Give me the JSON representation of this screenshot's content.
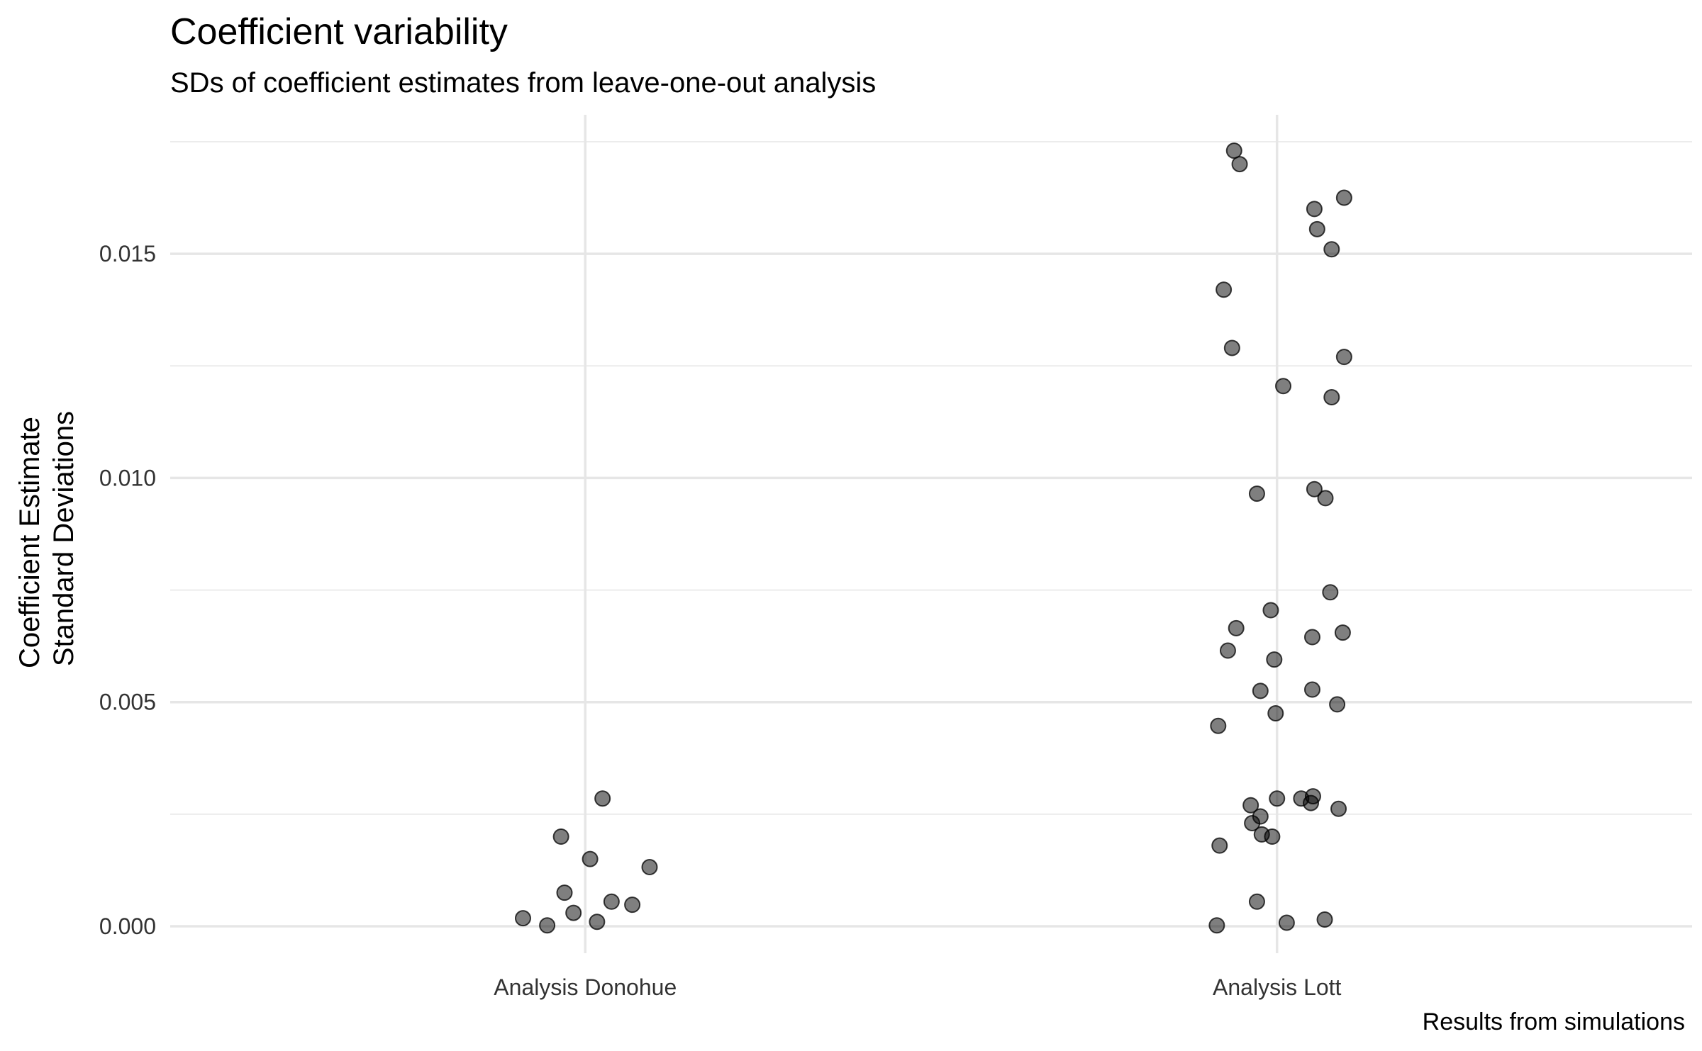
{
  "chart_data": {
    "type": "scatter",
    "title": "Coefficient variability",
    "subtitle": "SDs of coefficient estimates from leave-one-out analysis",
    "caption": "Results from simulations",
    "xlabel": "",
    "ylabel_lines": [
      "Coefficient Estimate",
      "Standard Deviations"
    ],
    "categories": [
      "Analysis Donohue",
      "Analysis Lott"
    ],
    "y_ticks": [
      "0.000",
      "0.005",
      "0.010",
      "0.015"
    ],
    "ylim": [
      -0.0006,
      0.0181
    ],
    "grid": true,
    "legend": "none",
    "point_color": "#000000",
    "point_alpha": 0.5,
    "points": [
      {
        "category": "Analysis Donohue",
        "x": -0.09,
        "y": 0.00018
      },
      {
        "category": "Analysis Donohue",
        "x": -0.055,
        "y": 2e-05
      },
      {
        "category": "Analysis Donohue",
        "x": -0.035,
        "y": 0.002
      },
      {
        "category": "Analysis Donohue",
        "x": -0.03,
        "y": 0.00075
      },
      {
        "category": "Analysis Donohue",
        "x": -0.017,
        "y": 0.0003
      },
      {
        "category": "Analysis Donohue",
        "x": 0.007,
        "y": 0.0015
      },
      {
        "category": "Analysis Donohue",
        "x": 0.017,
        "y": 0.0001
      },
      {
        "category": "Analysis Donohue",
        "x": 0.025,
        "y": 0.00285
      },
      {
        "category": "Analysis Donohue",
        "x": 0.038,
        "y": 0.00055
      },
      {
        "category": "Analysis Donohue",
        "x": 0.068,
        "y": 0.00048
      },
      {
        "category": "Analysis Donohue",
        "x": 0.093,
        "y": 0.00132
      },
      {
        "category": "Analysis Lott",
        "x": -0.062,
        "y": 0.0173
      },
      {
        "category": "Analysis Lott",
        "x": -0.054,
        "y": 0.017
      },
      {
        "category": "Analysis Lott",
        "x": 0.097,
        "y": 0.01625
      },
      {
        "category": "Analysis Lott",
        "x": 0.054,
        "y": 0.016
      },
      {
        "category": "Analysis Lott",
        "x": 0.058,
        "y": 0.01555
      },
      {
        "category": "Analysis Lott",
        "x": 0.079,
        "y": 0.0151
      },
      {
        "category": "Analysis Lott",
        "x": -0.077,
        "y": 0.0142
      },
      {
        "category": "Analysis Lott",
        "x": -0.065,
        "y": 0.0129
      },
      {
        "category": "Analysis Lott",
        "x": 0.097,
        "y": 0.0127
      },
      {
        "category": "Analysis Lott",
        "x": 0.009,
        "y": 0.01205
      },
      {
        "category": "Analysis Lott",
        "x": 0.079,
        "y": 0.0118
      },
      {
        "category": "Analysis Lott",
        "x": 0.054,
        "y": 0.00975
      },
      {
        "category": "Analysis Lott",
        "x": -0.029,
        "y": 0.00965
      },
      {
        "category": "Analysis Lott",
        "x": 0.07,
        "y": 0.00955
      },
      {
        "category": "Analysis Lott",
        "x": 0.077,
        "y": 0.00745
      },
      {
        "category": "Analysis Lott",
        "x": -0.009,
        "y": 0.00705
      },
      {
        "category": "Analysis Lott",
        "x": -0.059,
        "y": 0.00665
      },
      {
        "category": "Analysis Lott",
        "x": 0.095,
        "y": 0.00655
      },
      {
        "category": "Analysis Lott",
        "x": 0.051,
        "y": 0.00645
      },
      {
        "category": "Analysis Lott",
        "x": -0.071,
        "y": 0.00615
      },
      {
        "category": "Analysis Lott",
        "x": -0.004,
        "y": 0.00595
      },
      {
        "category": "Analysis Lott",
        "x": -0.024,
        "y": 0.00525
      },
      {
        "category": "Analysis Lott",
        "x": 0.051,
        "y": 0.00528
      },
      {
        "category": "Analysis Lott",
        "x": 0.087,
        "y": 0.00495
      },
      {
        "category": "Analysis Lott",
        "x": -0.002,
        "y": 0.00475
      },
      {
        "category": "Analysis Lott",
        "x": -0.085,
        "y": 0.00447
      },
      {
        "category": "Analysis Lott",
        "x": 0.052,
        "y": 0.0029
      },
      {
        "category": "Analysis Lott",
        "x": 0.0,
        "y": 0.00285
      },
      {
        "category": "Analysis Lott",
        "x": 0.035,
        "y": 0.00285
      },
      {
        "category": "Analysis Lott",
        "x": 0.049,
        "y": 0.00275
      },
      {
        "category": "Analysis Lott",
        "x": -0.038,
        "y": 0.0027
      },
      {
        "category": "Analysis Lott",
        "x": 0.089,
        "y": 0.00262
      },
      {
        "category": "Analysis Lott",
        "x": -0.024,
        "y": 0.00245
      },
      {
        "category": "Analysis Lott",
        "x": -0.036,
        "y": 0.0023
      },
      {
        "category": "Analysis Lott",
        "x": -0.022,
        "y": 0.00205
      },
      {
        "category": "Analysis Lott",
        "x": -0.007,
        "y": 0.002
      },
      {
        "category": "Analysis Lott",
        "x": -0.083,
        "y": 0.0018
      },
      {
        "category": "Analysis Lott",
        "x": -0.029,
        "y": 0.00055
      },
      {
        "category": "Analysis Lott",
        "x": 0.069,
        "y": 0.00015
      },
      {
        "category": "Analysis Lott",
        "x": 0.014,
        "y": 8e-05
      },
      {
        "category": "Analysis Lott",
        "x": -0.087,
        "y": 2e-05
      }
    ]
  }
}
